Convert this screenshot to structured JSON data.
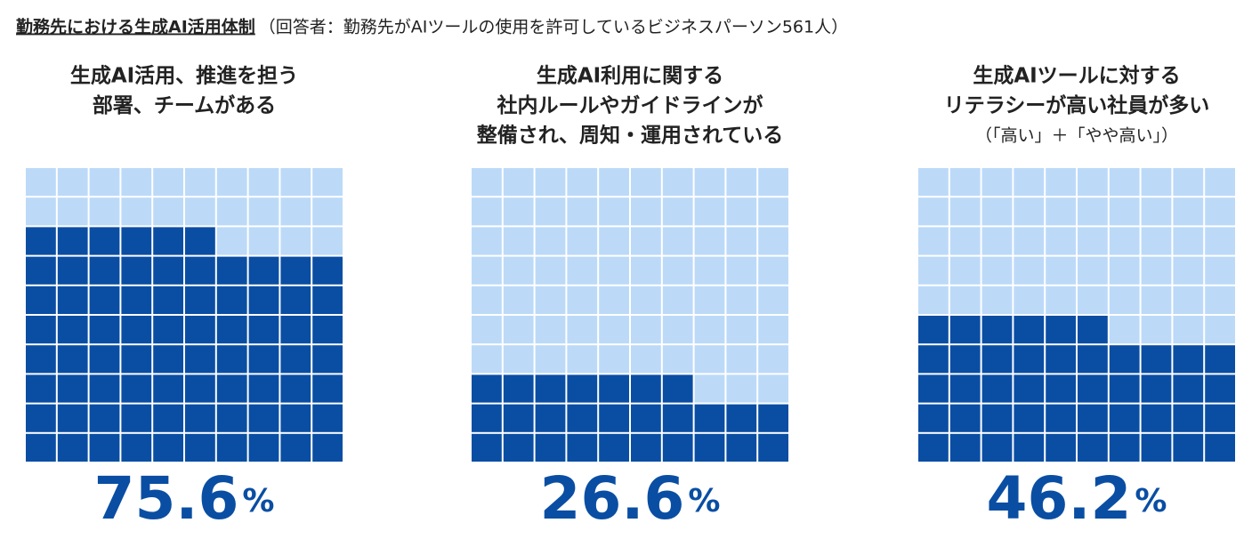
{
  "chart_data": {
    "type": "waffle",
    "title": "勤務先における生成AI活用体制",
    "subtitle": "（回答者：勤務先がAIツールの使用を許可しているビジネスパーソン561人）",
    "categories": [
      [
        "生成AI活用、推進を担う",
        "部署、チームがある"
      ],
      [
        "生成AI利用に関する",
        "社内ルールやガイドラインが",
        "整備され、周知・運用されている"
      ],
      [
        "生成AIツールに対する",
        "リテラシーが高い社員が多い"
      ]
    ],
    "notes": [
      null,
      null,
      "（「高い」＋「やや高い」）"
    ],
    "values": [
      75.6,
      26.6,
      46.2
    ],
    "unit": "%",
    "rows": 10,
    "cols": 10,
    "color": "#0a4ea3",
    "empty_color": "#bcdaf8"
  }
}
